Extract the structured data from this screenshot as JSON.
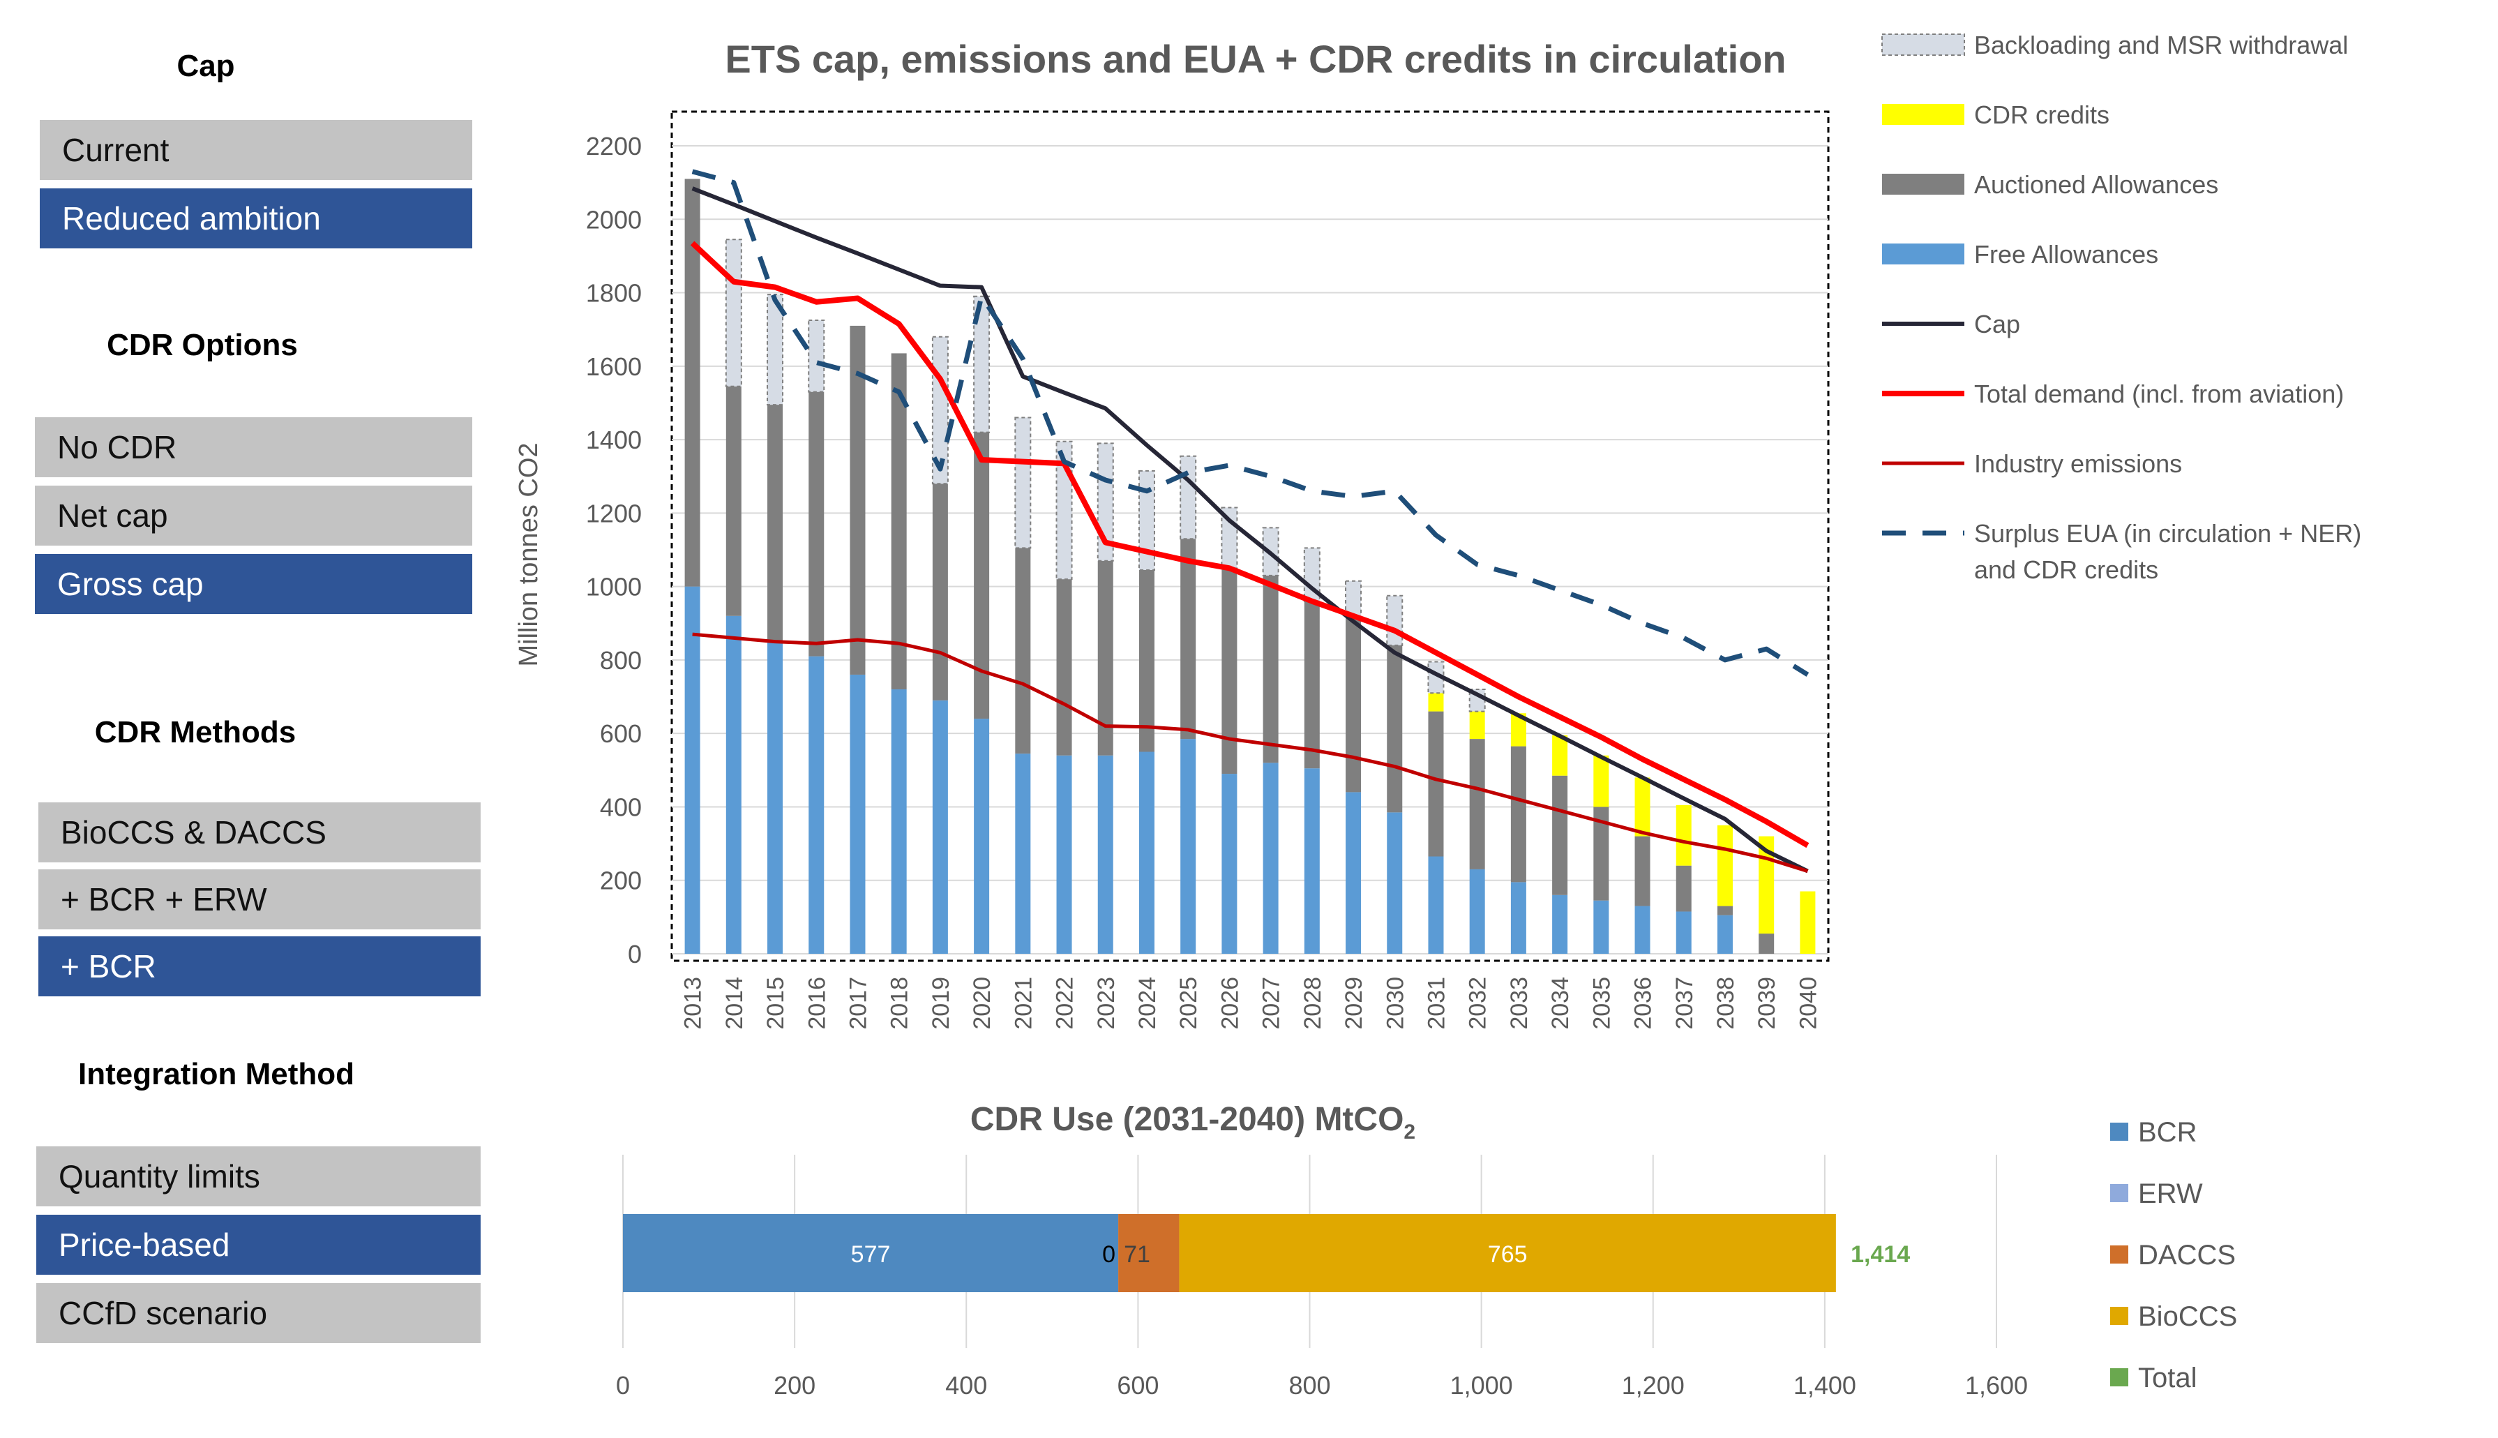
{
  "sidebar": {
    "cap": {
      "heading": "Cap",
      "options": [
        "Current",
        "Reduced ambition"
      ],
      "selected": 1
    },
    "cdr_options": {
      "heading": "CDR Options",
      "options": [
        "No CDR",
        "Net cap",
        "Gross cap"
      ],
      "selected": 2
    },
    "cdr_methods": {
      "heading": "CDR Methods",
      "options": [
        "BioCCS & DACCS",
        "+ BCR + ERW",
        "+ BCR"
      ],
      "selected": 2
    },
    "integration": {
      "heading": "Integration Method",
      "options": [
        "Quantity limits",
        "Price-based",
        "CCfD scenario"
      ],
      "selected": 1
    }
  },
  "colors": {
    "option_default": "#c3c3c3",
    "option_selected": "#2f5597",
    "free": "#5b9bd5",
    "auctioned": "#7f7f7f",
    "cdr": "#ffff00",
    "backloading": "#d6dce5",
    "cap_line": "#262636",
    "demand_line": "#ff0000",
    "industry_line": "#c00000",
    "surplus_line": "#1f4e79",
    "bcr": "#4e89c0",
    "erw": "#8faadc",
    "daccs": "#cf6f2a",
    "bioccs": "#e0a800",
    "total": "#6aa84f"
  },
  "chart_data": [
    {
      "type": "bar",
      "title": "ETS cap, emissions and EUA + CDR credits in circulation",
      "ylabel": "Million tonnes CO2",
      "xlabel": "",
      "ylim": [
        0,
        2200
      ],
      "yticks": [
        0,
        200,
        400,
        600,
        800,
        1000,
        1200,
        1400,
        1600,
        1800,
        2000,
        2200
      ],
      "grid": true,
      "legend_position": "right",
      "categories": [
        "2013",
        "2014",
        "2015",
        "2016",
        "2017",
        "2018",
        "2019",
        "2020",
        "2021",
        "2022",
        "2023",
        "2024",
        "2025",
        "2026",
        "2027",
        "2028",
        "2029",
        "2030",
        "2031",
        "2032",
        "2033",
        "2034",
        "2035",
        "2036",
        "2037",
        "2038",
        "2039",
        "2040"
      ],
      "stacked_series": [
        {
          "name": "Free Allowances",
          "values": [
            1000,
            920,
            850,
            810,
            760,
            720,
            690,
            640,
            545,
            540,
            540,
            550,
            585,
            490,
            520,
            505,
            440,
            385,
            265,
            230,
            195,
            160,
            145,
            130,
            115,
            105,
            0,
            0
          ]
        },
        {
          "name": "Auctioned Allowances",
          "values": [
            1110,
            625,
            645,
            720,
            950,
            915,
            590,
            780,
            560,
            480,
            530,
            495,
            545,
            560,
            510,
            455,
            475,
            455,
            395,
            355,
            370,
            325,
            255,
            190,
            125,
            25,
            55,
            0
          ]
        },
        {
          "name": "CDR credits",
          "values": [
            0,
            0,
            0,
            0,
            0,
            0,
            0,
            0,
            0,
            0,
            0,
            0,
            0,
            0,
            0,
            0,
            0,
            0,
            50,
            75,
            90,
            110,
            140,
            160,
            165,
            220,
            265,
            170
          ]
        },
        {
          "name": "Backloading and MSR withdrawal",
          "values": [
            0,
            400,
            300,
            195,
            0,
            0,
            400,
            370,
            355,
            375,
            320,
            270,
            225,
            165,
            130,
            145,
            100,
            135,
            85,
            60,
            0,
            0,
            0,
            0,
            0,
            0,
            0,
            0
          ]
        }
      ],
      "line_series": [
        {
          "name": "Cap",
          "values": [
            2084,
            2040,
            1995,
            1950,
            1907,
            1863,
            1819,
            1815,
            1572,
            1528,
            1485,
            1385,
            1290,
            1180,
            1090,
            995,
            905,
            820,
            762,
            706,
            649,
            593,
            536,
            480,
            423,
            367,
            280,
            225
          ]
        },
        {
          "name": "Total demand (incl. from aviation)",
          "values": [
            1935,
            1830,
            1815,
            1775,
            1785,
            1715,
            1565,
            1345,
            1340,
            1335,
            1120,
            1095,
            1070,
            1050,
            1005,
            960,
            920,
            880,
            820,
            760,
            700,
            645,
            590,
            530,
            475,
            420,
            360,
            295
          ]
        },
        {
          "name": "Industry emissions",
          "values": [
            870,
            860,
            850,
            845,
            855,
            845,
            820,
            770,
            735,
            680,
            620,
            618,
            610,
            585,
            570,
            555,
            535,
            510,
            475,
            450,
            420,
            390,
            360,
            330,
            305,
            285,
            260,
            225
          ]
        },
        {
          "name": "Surplus EUA (in circulation + NER) and CDR credits",
          "values": [
            2130,
            2100,
            1780,
            1610,
            1580,
            1530,
            1320,
            1790,
            1620,
            1340,
            1290,
            1260,
            1310,
            1330,
            1300,
            1260,
            1245,
            1260,
            1140,
            1060,
            1030,
            990,
            950,
            900,
            860,
            800,
            830,
            760
          ]
        }
      ],
      "legend": [
        "Backloading and MSR withdrawal",
        "CDR credits",
        "Auctioned Allowances",
        "Free Allowances",
        "Cap",
        "Total demand (incl. from aviation)",
        "Industry emissions",
        "Surplus EUA (in circulation + NER)",
        "and CDR credits"
      ]
    },
    {
      "type": "bar",
      "orientation": "horizontal",
      "stacked": true,
      "title": "CDR Use (2031-2040) MtCO",
      "title_subscript": "2",
      "xlim": [
        0,
        1600
      ],
      "xticks": [
        "0",
        "200",
        "400",
        "600",
        "800",
        "1,000",
        "1,200",
        "1,400",
        "1,600"
      ],
      "grid": true,
      "legend_position": "right",
      "series": [
        {
          "name": "BCR",
          "value": 577,
          "label": "577"
        },
        {
          "name": "ERW",
          "value": 0,
          "label": "0"
        },
        {
          "name": "DACCS",
          "value": 71,
          "label": "71"
        },
        {
          "name": "BioCCS",
          "value": 765,
          "label": "765"
        }
      ],
      "total": {
        "name": "Total",
        "value": 1414,
        "label": "1,414"
      },
      "legend": [
        "BCR",
        "ERW",
        "DACCS",
        "BioCCS",
        "Total"
      ]
    }
  ]
}
